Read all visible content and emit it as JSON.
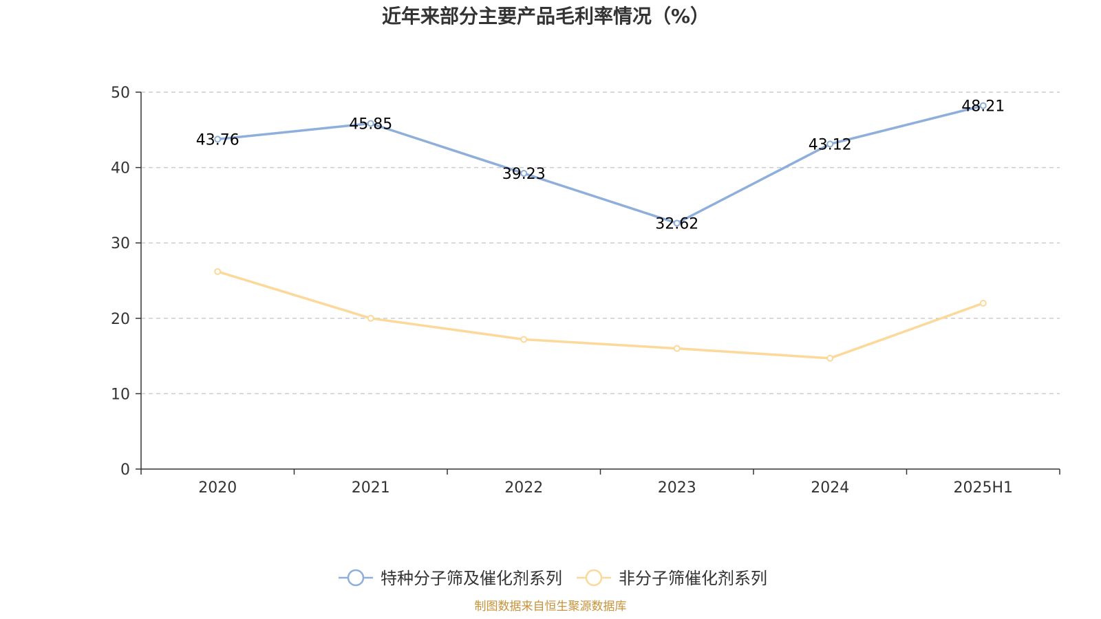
{
  "chart_data": {
    "type": "line",
    "title": "近年来部分主要产品毛利率情况（%）",
    "categories": [
      "2020",
      "2021",
      "2022",
      "2023",
      "2024",
      "2025H1"
    ],
    "ylim": [
      0,
      50
    ],
    "yticks": [
      "0",
      "10",
      "20",
      "30",
      "40",
      "50"
    ],
    "grid": true,
    "legend_position": "bottom",
    "series": [
      {
        "name": "特种分子筛及催化剂系列",
        "values": [
          43.76,
          45.85,
          39.23,
          32.62,
          43.12,
          48.21
        ],
        "labels": [
          "43.76",
          "45.85",
          "39.23",
          "32.62",
          "43.12",
          "48.21"
        ],
        "color": "#8eaedb",
        "show_labels": true
      },
      {
        "name": "非分子筛催化剂系列",
        "values": [
          26.2,
          20.0,
          17.2,
          16.0,
          14.7,
          22.0
        ],
        "color": "#fcd89a",
        "show_labels": false
      }
    ]
  },
  "source": "制图数据来自恒生聚源数据库",
  "colors": {
    "axis": "#333333",
    "grid": "#cccccc",
    "source": "#c8923a"
  }
}
